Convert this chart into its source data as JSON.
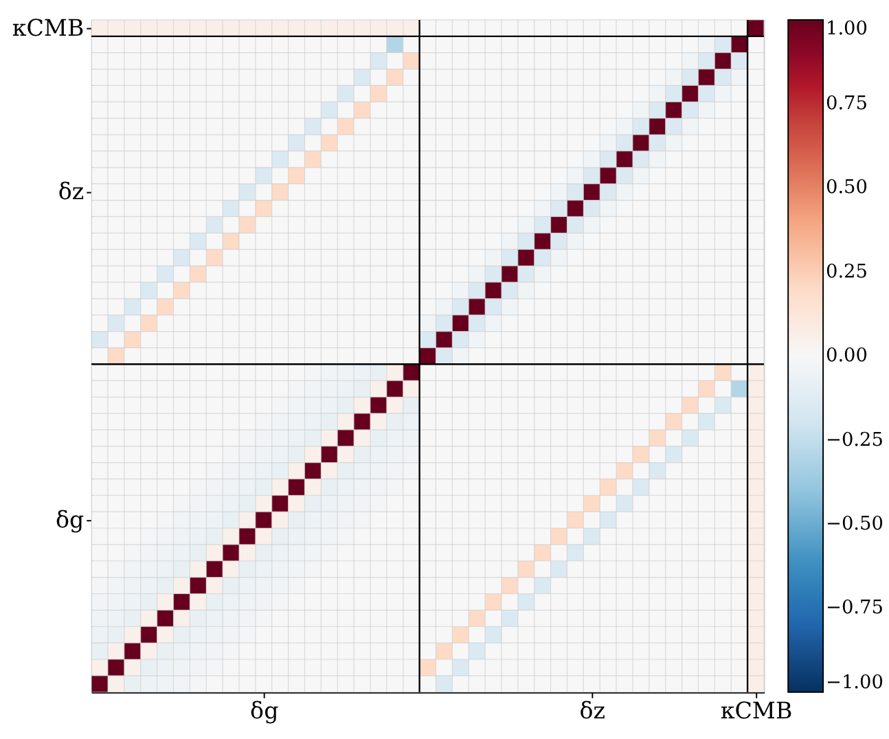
{
  "chart_data": {
    "type": "heatmap",
    "categories": [
      null,
      null,
      null,
      null,
      null,
      null,
      null,
      null,
      null,
      null,
      "δg",
      null,
      null,
      null,
      null,
      null,
      null,
      null,
      null,
      null,
      null,
      null,
      null,
      null,
      null,
      null,
      null,
      null,
      null,
      null,
      "δz",
      null,
      null,
      null,
      null,
      null,
      null,
      null,
      null,
      null,
      "κCMB"
    ],
    "y_categories": [
      "κCMB",
      null,
      null,
      null,
      null,
      null,
      null,
      null,
      null,
      null,
      "δz",
      null,
      null,
      null,
      null,
      null,
      null,
      null,
      null,
      null,
      null,
      null,
      null,
      null,
      null,
      null,
      null,
      null,
      null,
      null,
      "δg",
      null,
      null,
      null,
      null,
      null,
      null,
      null,
      null,
      null,
      null
    ],
    "clim": [
      -1,
      1
    ],
    "cticks": [
      {
        "value": 1,
        "label": "1.00"
      },
      {
        "value": 0.75,
        "label": "0.75"
      },
      {
        "value": 0.5,
        "label": "0.50"
      },
      {
        "value": 0.25,
        "label": "0.25"
      },
      {
        "value": 0,
        "label": "0.00"
      },
      {
        "value": -0.25,
        "label": "−0.25"
      },
      {
        "value": -0.5,
        "label": "−0.50"
      },
      {
        "value": -0.75,
        "label": "−0.75"
      },
      {
        "value": -1,
        "label": "−1.00"
      }
    ],
    "grid": true,
    "cells": [
      [
        0.06,
        0.06,
        0.06,
        0.06,
        0.06,
        0.06,
        0.06,
        0.06,
        0.06,
        0.06,
        0.06,
        0.06,
        0.06,
        0.06,
        0.06,
        0.06,
        0.06,
        0.06,
        0.06,
        0.06,
        0,
        0,
        0,
        0,
        0,
        0,
        0,
        0,
        0,
        0,
        0,
        0,
        0,
        0,
        0,
        0,
        0,
        0,
        0,
        0,
        1
      ],
      [
        0,
        0,
        0,
        0,
        0,
        0,
        0,
        0,
        0,
        0,
        0,
        0,
        0,
        0,
        0,
        0,
        0,
        0,
        -0.3,
        0,
        0,
        0,
        0,
        0,
        0,
        0,
        0,
        0,
        0,
        0,
        0,
        0,
        0,
        0,
        0,
        0,
        0,
        -0.03,
        -0.15,
        1,
        0
      ],
      [
        0,
        0,
        0,
        0,
        0,
        0,
        0,
        0,
        0,
        0,
        0,
        0,
        0,
        0,
        0,
        0,
        0,
        -0.15,
        0,
        0.2,
        0,
        0,
        0,
        0,
        0,
        0,
        0,
        0,
        0,
        0,
        0,
        0,
        0,
        0,
        0,
        0,
        -0.03,
        -0.15,
        1,
        -0.15,
        0
      ],
      [
        0,
        0,
        0,
        0,
        0,
        0,
        0,
        0,
        0,
        0,
        0,
        0,
        0,
        0,
        0,
        0,
        -0.15,
        0,
        0.2,
        0,
        0,
        0,
        0,
        0,
        0,
        0,
        0,
        0,
        0,
        0,
        0,
        0,
        0,
        0,
        0,
        -0.03,
        -0.15,
        1,
        -0.15,
        -0.03,
        0
      ],
      [
        0,
        0,
        0,
        0,
        0,
        0,
        0,
        0,
        0,
        0,
        0,
        0,
        0,
        0,
        0,
        -0.15,
        0,
        0.2,
        0,
        0,
        0,
        0,
        0,
        0,
        0,
        0,
        0,
        0,
        0,
        0,
        0,
        0,
        0,
        0,
        -0.03,
        -0.15,
        1,
        -0.15,
        -0.03,
        0,
        0
      ],
      [
        0,
        0,
        0,
        0,
        0,
        0,
        0,
        0,
        0,
        0,
        0,
        0,
        0,
        0,
        -0.15,
        0,
        0.2,
        0,
        0,
        0,
        0,
        0,
        0,
        0,
        0,
        0,
        0,
        0,
        0,
        0,
        0,
        0,
        0,
        -0.03,
        -0.15,
        1,
        -0.15,
        -0.03,
        0,
        0,
        0
      ],
      [
        0,
        0,
        0,
        0,
        0,
        0,
        0,
        0,
        0,
        0,
        0,
        0,
        0,
        -0.15,
        0,
        0.2,
        0,
        0,
        0,
        0,
        0,
        0,
        0,
        0,
        0,
        0,
        0,
        0,
        0,
        0,
        0,
        0,
        -0.03,
        -0.15,
        1,
        -0.15,
        -0.03,
        0,
        0,
        0,
        0
      ],
      [
        0,
        0,
        0,
        0,
        0,
        0,
        0,
        0,
        0,
        0,
        0,
        0,
        -0.15,
        0,
        0.2,
        0,
        0,
        0,
        0,
        0,
        0,
        0,
        0,
        0,
        0,
        0,
        0,
        0,
        0,
        0,
        0,
        -0.03,
        -0.15,
        1,
        -0.15,
        -0.03,
        0,
        0,
        0,
        0,
        0
      ],
      [
        0,
        0,
        0,
        0,
        0,
        0,
        0,
        0,
        0,
        0,
        0,
        -0.15,
        0,
        0.2,
        0,
        0,
        0,
        0,
        0,
        0,
        0,
        0,
        0,
        0,
        0,
        0,
        0,
        0,
        0,
        0,
        -0.03,
        -0.15,
        1,
        -0.15,
        -0.03,
        0,
        0,
        0,
        0,
        0,
        0
      ],
      [
        0,
        0,
        0,
        0,
        0,
        0,
        0,
        0,
        0,
        0,
        -0.15,
        0,
        0.2,
        0,
        0,
        0,
        0,
        0,
        0,
        0,
        0,
        0,
        0,
        0,
        0,
        0,
        0,
        0,
        0,
        -0.03,
        -0.15,
        1,
        -0.15,
        -0.03,
        0,
        0,
        0,
        0,
        0,
        0,
        0
      ],
      [
        0,
        0,
        0,
        0,
        0,
        0,
        0,
        0,
        0,
        -0.15,
        0,
        0.2,
        0,
        0,
        0,
        0,
        0,
        0,
        0,
        0,
        0,
        0,
        0,
        0,
        0,
        0,
        0,
        0,
        -0.03,
        -0.15,
        1,
        -0.15,
        -0.03,
        0,
        0,
        0,
        0,
        0,
        0,
        0,
        0
      ],
      [
        0,
        0,
        0,
        0,
        0,
        0,
        0,
        0,
        -0.15,
        0,
        0.2,
        0,
        0,
        0,
        0,
        0,
        0,
        0,
        0,
        0,
        0,
        0,
        0,
        0,
        0,
        0,
        0,
        -0.03,
        -0.15,
        1,
        -0.15,
        -0.03,
        0,
        0,
        0,
        0,
        0,
        0,
        0,
        0,
        0
      ],
      [
        0,
        0,
        0,
        0,
        0,
        0,
        0,
        -0.15,
        0,
        0.2,
        0,
        0,
        0,
        0,
        0,
        0,
        0,
        0,
        0,
        0,
        0,
        0,
        0,
        0,
        0,
        0,
        -0.03,
        -0.15,
        1,
        -0.15,
        -0.03,
        0,
        0,
        0,
        0,
        0,
        0,
        0,
        0,
        0,
        0
      ],
      [
        0,
        0,
        0,
        0,
        0,
        0,
        -0.15,
        0,
        0.2,
        0,
        0,
        0,
        0,
        0,
        0,
        0,
        0,
        0,
        0,
        0,
        0,
        0,
        0,
        0,
        0,
        -0.03,
        -0.15,
        1,
        -0.15,
        -0.03,
        0,
        0,
        0,
        0,
        0,
        0,
        0,
        0,
        0,
        0,
        0
      ],
      [
        0,
        0,
        0,
        0,
        0,
        -0.15,
        0,
        0.2,
        0,
        0,
        0,
        0,
        0,
        0,
        0,
        0,
        0,
        0,
        0,
        0,
        0,
        0,
        0,
        0,
        -0.03,
        -0.15,
        1,
        -0.15,
        -0.03,
        0,
        0,
        0,
        0,
        0,
        0,
        0,
        0,
        0,
        0,
        0,
        0
      ],
      [
        0,
        0,
        0,
        0,
        -0.15,
        0,
        0.2,
        0,
        0,
        0,
        0,
        0,
        0,
        0,
        0,
        0,
        0,
        0,
        0,
        0,
        0,
        0,
        0,
        -0.03,
        -0.15,
        1,
        -0.15,
        -0.03,
        0,
        0,
        0,
        0,
        0,
        0,
        0,
        0,
        0,
        0,
        0,
        0,
        0
      ],
      [
        0,
        0,
        0,
        -0.15,
        0,
        0.2,
        0,
        0,
        0,
        0,
        0,
        0,
        0,
        0,
        0,
        0,
        0,
        0,
        0,
        0,
        0,
        0,
        -0.03,
        -0.15,
        1,
        -0.15,
        -0.03,
        0,
        0,
        0,
        0,
        0,
        0,
        0,
        0,
        0,
        0,
        0,
        0,
        0,
        0
      ],
      [
        0,
        0,
        -0.15,
        0,
        0.2,
        0,
        0,
        0,
        0,
        0,
        0,
        0,
        0,
        0,
        0,
        0,
        0,
        0,
        0,
        0,
        0,
        -0.03,
        -0.15,
        1,
        -0.15,
        -0.03,
        0,
        0,
        0,
        0,
        0,
        0,
        0,
        0,
        0,
        0,
        0,
        0,
        0,
        0,
        0
      ],
      [
        0,
        -0.15,
        0,
        0.2,
        0,
        0,
        0,
        0,
        0,
        0,
        0,
        0,
        0,
        0,
        0,
        0,
        0,
        0,
        0,
        0,
        -0.03,
        -0.15,
        1,
        -0.15,
        -0.03,
        0,
        0,
        0,
        0,
        0,
        0,
        0,
        0,
        0,
        0,
        0,
        0,
        0,
        0,
        0,
        0
      ],
      [
        -0.15,
        0,
        0.2,
        0,
        0,
        0,
        0,
        0,
        0,
        0,
        0,
        0,
        0,
        0,
        0,
        0,
        0,
        0,
        0,
        0,
        -0.15,
        1,
        -0.15,
        -0.03,
        0,
        0,
        0,
        0,
        0,
        0,
        0,
        0,
        0,
        0,
        0,
        0,
        0,
        0,
        0,
        0,
        0
      ],
      [
        0,
        0.2,
        0,
        0,
        0,
        0,
        0,
        0,
        0,
        0,
        0,
        0,
        0,
        0,
        0,
        0,
        0,
        0,
        0,
        0,
        1,
        -0.15,
        -0.03,
        0,
        0,
        0,
        0,
        0,
        0,
        0,
        0,
        0,
        0,
        0,
        0,
        0,
        0,
        0,
        0,
        0,
        0
      ],
      [
        0,
        0,
        0,
        0,
        0,
        0,
        0,
        0,
        0,
        0,
        0,
        0,
        0,
        -0.02,
        -0.03,
        -0.04,
        -0.06,
        -0.08,
        0.05,
        1,
        0,
        0,
        0,
        0,
        0,
        0,
        0,
        0,
        0,
        0,
        0,
        0,
        0,
        0,
        0,
        0,
        0,
        0,
        0.2,
        0,
        0.06
      ],
      [
        0,
        0,
        0,
        0,
        0,
        0,
        0,
        0,
        0,
        0,
        0,
        0,
        -0.02,
        -0.03,
        -0.04,
        -0.06,
        -0.08,
        0.05,
        1,
        0.05,
        0,
        0,
        0,
        0,
        0,
        0,
        0,
        0,
        0,
        0,
        0,
        0,
        0,
        0,
        0,
        0,
        0,
        0.2,
        0,
        -0.3,
        0.06
      ],
      [
        0,
        0,
        0,
        0,
        0,
        0,
        0,
        0,
        0,
        0,
        0,
        -0.02,
        -0.03,
        -0.04,
        -0.06,
        -0.08,
        0.05,
        1,
        0.05,
        -0.08,
        0,
        0,
        0,
        0,
        0,
        0,
        0,
        0,
        0,
        0,
        0,
        0,
        0,
        0,
        0,
        0,
        0.2,
        0,
        -0.15,
        0,
        0.06
      ],
      [
        0,
        0,
        0,
        0,
        0,
        0,
        0,
        0,
        0,
        0,
        -0.02,
        -0.03,
        -0.04,
        -0.06,
        -0.08,
        0.05,
        1,
        0.05,
        -0.08,
        -0.06,
        0,
        0,
        0,
        0,
        0,
        0,
        0,
        0,
        0,
        0,
        0,
        0,
        0,
        0,
        0,
        0.2,
        0,
        -0.15,
        0,
        0,
        0.06
      ],
      [
        0,
        0,
        0,
        0,
        0,
        0,
        0,
        0,
        0,
        -0.02,
        -0.03,
        -0.04,
        -0.06,
        -0.08,
        0.05,
        1,
        0.05,
        -0.08,
        -0.06,
        -0.04,
        0,
        0,
        0,
        0,
        0,
        0,
        0,
        0,
        0,
        0,
        0,
        0,
        0,
        0,
        0.2,
        0,
        -0.15,
        0,
        0,
        0,
        0.06
      ],
      [
        0,
        0,
        0,
        0,
        0,
        0,
        0,
        0,
        -0.02,
        -0.03,
        -0.04,
        -0.06,
        -0.08,
        0.05,
        1,
        0.05,
        -0.08,
        -0.06,
        -0.04,
        -0.03,
        0,
        0,
        0,
        0,
        0,
        0,
        0,
        0,
        0,
        0,
        0,
        0,
        0,
        0.2,
        0,
        -0.15,
        0,
        0,
        0,
        0,
        0.06
      ],
      [
        0,
        0,
        0,
        0,
        0,
        0,
        0,
        -0.02,
        -0.03,
        -0.04,
        -0.06,
        -0.08,
        0.05,
        1,
        0.05,
        -0.08,
        -0.06,
        -0.04,
        -0.03,
        -0.02,
        0,
        0,
        0,
        0,
        0,
        0,
        0,
        0,
        0,
        0,
        0,
        0,
        0.2,
        0,
        -0.15,
        0,
        0,
        0,
        0,
        0,
        0.06
      ],
      [
        0,
        0,
        0,
        0,
        0,
        0,
        -0.02,
        -0.03,
        -0.04,
        -0.06,
        -0.08,
        0.05,
        1,
        0.05,
        -0.08,
        -0.06,
        -0.04,
        -0.03,
        -0.02,
        0,
        0,
        0,
        0,
        0,
        0,
        0,
        0,
        0,
        0,
        0,
        0,
        0.2,
        0,
        -0.15,
        0,
        0,
        0,
        0,
        0,
        0,
        0.06
      ],
      [
        0,
        0,
        0,
        0,
        0,
        -0.02,
        -0.03,
        -0.04,
        -0.06,
        -0.08,
        0.05,
        1,
        0.05,
        -0.08,
        -0.06,
        -0.04,
        -0.03,
        -0.02,
        0,
        0,
        0,
        0,
        0,
        0,
        0,
        0,
        0,
        0,
        0,
        0,
        0.2,
        0,
        -0.15,
        0,
        0,
        0,
        0,
        0,
        0,
        0,
        0.06
      ],
      [
        0,
        0,
        0,
        0,
        -0.02,
        -0.03,
        -0.04,
        -0.06,
        -0.08,
        0.05,
        1,
        0.05,
        -0.08,
        -0.06,
        -0.04,
        -0.03,
        -0.02,
        0,
        0,
        0,
        0,
        0,
        0,
        0,
        0,
        0,
        0,
        0,
        0,
        0.2,
        0,
        -0.15,
        0,
        0,
        0,
        0,
        0,
        0,
        0,
        0,
        0.06
      ],
      [
        0,
        0,
        0,
        -0.02,
        -0.03,
        -0.04,
        -0.06,
        -0.08,
        0.05,
        1,
        0.05,
        -0.08,
        -0.06,
        -0.04,
        -0.03,
        -0.02,
        0,
        0,
        0,
        0,
        0,
        0,
        0,
        0,
        0,
        0,
        0,
        0,
        0.2,
        0,
        -0.15,
        0,
        0,
        0,
        0,
        0,
        0,
        0,
        0,
        0,
        0.06
      ],
      [
        0,
        0,
        -0.02,
        -0.03,
        -0.04,
        -0.06,
        -0.08,
        0.05,
        1,
        0.05,
        -0.08,
        -0.06,
        -0.04,
        -0.03,
        -0.02,
        0,
        0,
        0,
        0,
        0,
        0,
        0,
        0,
        0,
        0,
        0,
        0,
        0.2,
        0,
        -0.15,
        0,
        0,
        0,
        0,
        0,
        0,
        0,
        0,
        0,
        0,
        0.06
      ],
      [
        0,
        -0.02,
        -0.03,
        -0.04,
        -0.06,
        -0.08,
        0.05,
        1,
        0.05,
        -0.08,
        -0.06,
        -0.04,
        -0.03,
        -0.02,
        0,
        0,
        0,
        0,
        0,
        0,
        0,
        0,
        0,
        0,
        0,
        0,
        0.2,
        0,
        -0.15,
        0,
        0,
        0,
        0,
        0,
        0,
        0,
        0,
        0,
        0,
        0,
        0.06
      ],
      [
        -0.02,
        -0.03,
        -0.04,
        -0.06,
        -0.08,
        0.05,
        1,
        0.05,
        -0.08,
        -0.06,
        -0.04,
        -0.03,
        -0.02,
        0,
        0,
        0,
        0,
        0,
        0,
        0,
        0,
        0,
        0,
        0,
        0,
        0.2,
        0,
        -0.15,
        0,
        0,
        0,
        0,
        0,
        0,
        0,
        0,
        0,
        0,
        0,
        0,
        0.06
      ],
      [
        -0.03,
        -0.04,
        -0.06,
        -0.08,
        0.05,
        1,
        0.05,
        -0.08,
        -0.06,
        -0.04,
        -0.03,
        -0.02,
        0,
        0,
        0,
        0,
        0,
        0,
        0,
        0,
        0,
        0,
        0,
        0,
        0.2,
        0,
        -0.15,
        0,
        0,
        0,
        0,
        0,
        0,
        0,
        0,
        0,
        0,
        0,
        0,
        0,
        0.06
      ],
      [
        -0.04,
        -0.06,
        -0.08,
        0.05,
        1,
        0.05,
        -0.08,
        -0.06,
        -0.04,
        -0.03,
        -0.02,
        0,
        0,
        0,
        0,
        0,
        0,
        0,
        0,
        0,
        0,
        0,
        0,
        0.2,
        0,
        -0.15,
        0,
        0,
        0,
        0,
        0,
        0,
        0,
        0,
        0,
        0,
        0,
        0,
        0,
        0,
        0.06
      ],
      [
        -0.06,
        -0.08,
        0.05,
        1,
        0.05,
        -0.08,
        -0.06,
        -0.04,
        -0.03,
        -0.02,
        0,
        0,
        0,
        0,
        0,
        0,
        0,
        0,
        0,
        0,
        0,
        0,
        0.2,
        0,
        -0.15,
        0,
        0,
        0,
        0,
        0,
        0,
        0,
        0,
        0,
        0,
        0,
        0,
        0,
        0,
        0,
        0.06
      ],
      [
        -0.08,
        0.05,
        1,
        0.05,
        -0.08,
        -0.06,
        -0.04,
        -0.03,
        -0.02,
        0,
        0,
        0,
        0,
        0,
        0,
        0,
        0,
        0,
        0,
        0,
        0,
        0.2,
        0,
        -0.15,
        0,
        0,
        0,
        0,
        0,
        0,
        0,
        0,
        0,
        0,
        0,
        0,
        0,
        0,
        0,
        0,
        0.06
      ],
      [
        0.05,
        1,
        0.05,
        -0.08,
        -0.06,
        -0.04,
        -0.03,
        -0.02,
        0,
        0,
        0,
        0,
        0,
        0,
        0,
        0,
        0,
        0,
        0,
        0,
        0.2,
        0,
        -0.15,
        0,
        0,
        0,
        0,
        0,
        0,
        0,
        0,
        0,
        0,
        0,
        0,
        0,
        0,
        0,
        0,
        0,
        0.06
      ],
      [
        1,
        0.05,
        -0.08,
        -0.06,
        -0.04,
        -0.03,
        -0.02,
        0,
        0,
        0,
        0,
        0,
        0,
        0,
        0,
        0,
        0,
        0,
        0,
        0,
        0,
        -0.15,
        0,
        0,
        0,
        0,
        0,
        0,
        0,
        0,
        0,
        0,
        0,
        0,
        0,
        0,
        0,
        0,
        0,
        0,
        0.06
      ]
    ]
  }
}
